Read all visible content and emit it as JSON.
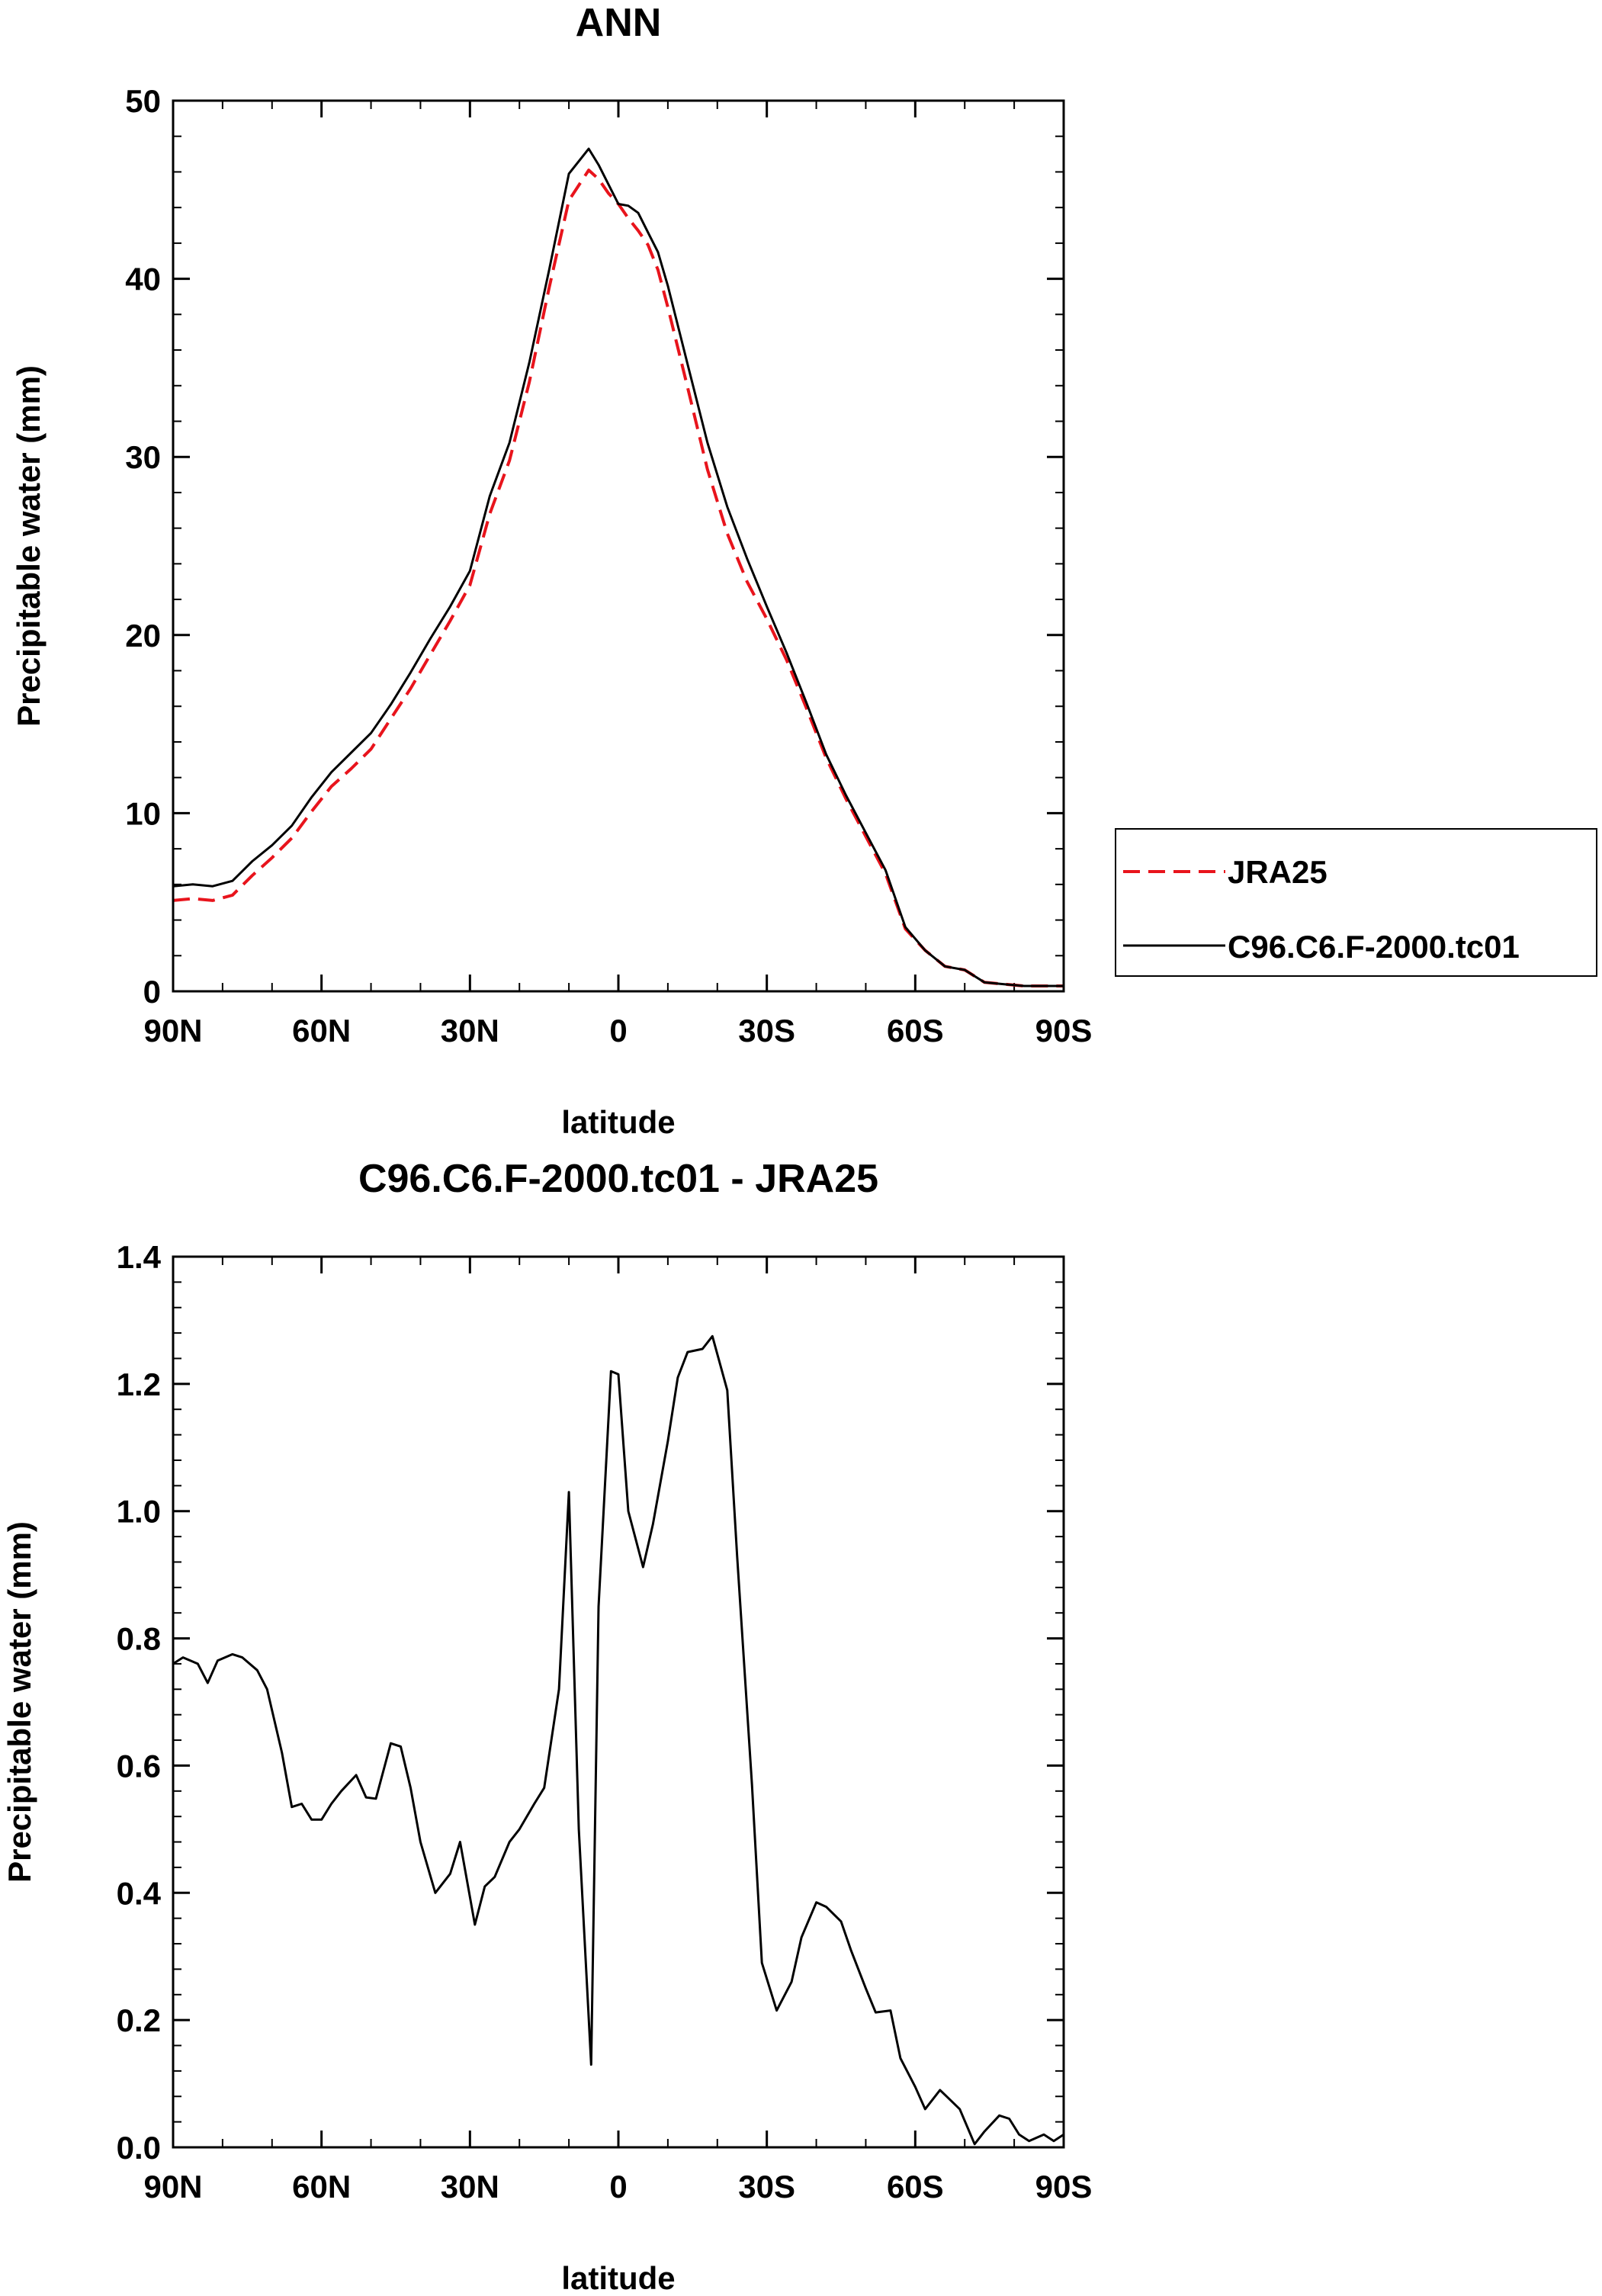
{
  "chart_data": [
    {
      "type": "line",
      "title": "ANN",
      "xlabel": "latitude",
      "ylabel": "Precipitable water (mm)",
      "ylim": [
        0,
        50
      ],
      "yticks": [
        0,
        10,
        20,
        30,
        40,
        50
      ],
      "xlim": [
        90,
        -90
      ],
      "xticks": [
        {
          "value": 90,
          "label": "90N"
        },
        {
          "value": 60,
          "label": "60N"
        },
        {
          "value": 30,
          "label": "30N"
        },
        {
          "value": 0,
          "label": "0"
        },
        {
          "value": -30,
          "label": "30S"
        },
        {
          "value": -60,
          "label": "60S"
        },
        {
          "value": -90,
          "label": "90S"
        }
      ],
      "legend": {
        "position": "right",
        "entries": [
          "JRA25",
          "C96.C6.F-2000.tc01"
        ]
      },
      "series": [
        {
          "name": "JRA25",
          "color": "#e8141c",
          "dash": "dashed",
          "x": [
            90,
            86,
            82,
            78,
            74,
            70,
            66,
            62,
            58,
            54,
            50,
            46,
            42,
            38,
            34,
            30,
            26,
            22,
            18,
            14,
            10,
            6,
            4,
            2,
            0,
            -2,
            -4,
            -6,
            -8,
            -10,
            -14,
            -18,
            -22,
            -26,
            -30,
            -34,
            -38,
            -42,
            -46,
            -50,
            -54,
            -58,
            -62,
            -66,
            -70,
            -74,
            -78,
            -82,
            -86,
            -90
          ],
          "values": [
            5.1,
            5.2,
            5.1,
            5.4,
            6.5,
            7.5,
            8.6,
            10.1,
            11.5,
            12.5,
            13.6,
            15.3,
            17.0,
            18.9,
            20.8,
            22.8,
            26.8,
            29.8,
            34.2,
            39.5,
            44.4,
            46.1,
            45.6,
            44.8,
            44.2,
            43.4,
            42.7,
            41.9,
            40.5,
            38.4,
            33.9,
            29.3,
            25.7,
            23.0,
            20.9,
            18.6,
            15.9,
            13.1,
            10.8,
            8.7,
            6.6,
            3.5,
            2.3,
            1.4,
            1.2,
            0.5,
            0.4,
            0.3,
            0.3,
            0.3
          ]
        },
        {
          "name": "C96.C6.F-2000.tc01",
          "color": "#000000",
          "dash": "solid",
          "x": [
            90,
            86,
            82,
            78,
            74,
            70,
            66,
            62,
            58,
            54,
            50,
            46,
            42,
            38,
            34,
            30,
            26,
            22,
            18,
            14,
            10,
            6,
            4,
            2,
            0,
            -2,
            -4,
            -6,
            -8,
            -10,
            -14,
            -18,
            -22,
            -26,
            -30,
            -34,
            -38,
            -42,
            -46,
            -50,
            -54,
            -58,
            -62,
            -66,
            -70,
            -74,
            -78,
            -82,
            -86,
            -90
          ],
          "values": [
            5.9,
            6.0,
            5.9,
            6.2,
            7.3,
            8.2,
            9.3,
            10.9,
            12.3,
            13.4,
            14.5,
            16.1,
            17.9,
            19.8,
            21.6,
            23.6,
            27.8,
            30.8,
            35.3,
            40.5,
            45.9,
            47.3,
            46.4,
            45.3,
            44.2,
            44.1,
            43.7,
            42.6,
            41.5,
            39.6,
            35.2,
            30.8,
            27.2,
            24.3,
            21.6,
            19.0,
            16.2,
            13.3,
            11.0,
            8.9,
            6.8,
            3.6,
            2.3,
            1.4,
            1.2,
            0.5,
            0.4,
            0.3,
            0.3,
            0.3
          ]
        }
      ]
    },
    {
      "type": "line",
      "title": "C96.C6.F-2000.tc01 - JRA25",
      "xlabel": "latitude",
      "ylabel": "Precipitable water (mm)",
      "ylim": [
        0,
        1.4
      ],
      "yticks": [
        "0.0",
        "0.2",
        "0.4",
        "0.6",
        "0.8",
        "1.0",
        "1.2",
        "1.4"
      ],
      "xlim": [
        90,
        -90
      ],
      "xticks": [
        {
          "value": 90,
          "label": "90N"
        },
        {
          "value": 60,
          "label": "60N"
        },
        {
          "value": 30,
          "label": "30N"
        },
        {
          "value": 0,
          "label": "0"
        },
        {
          "value": -30,
          "label": "30S"
        },
        {
          "value": -60,
          "label": "60S"
        },
        {
          "value": -90,
          "label": "90S"
        }
      ],
      "series": [
        {
          "name": "C96.C6.F-2000.tc01 - JRA25",
          "color": "#000000",
          "dash": "solid",
          "x": [
            90,
            88,
            85,
            83,
            81,
            78,
            76,
            73,
            71,
            68,
            66,
            64,
            62,
            60,
            58,
            56,
            53,
            51,
            49,
            46,
            44,
            42,
            40,
            37,
            34,
            32,
            29,
            27,
            25,
            22,
            20,
            17,
            15,
            12,
            10,
            8,
            5.5,
            4,
            1.5,
            0,
            -2,
            -5,
            -7,
            -10,
            -12,
            -14,
            -17,
            -19,
            -22,
            -24,
            -27,
            -29,
            -32,
            -35,
            -37,
            -40,
            -42,
            -45,
            -47,
            -50,
            -52,
            -55,
            -57,
            -60,
            -62,
            -65,
            -67,
            -69,
            -72,
            -74,
            -77,
            -79,
            -81,
            -83,
            -86,
            -88,
            -90
          ],
          "values": [
            0.76,
            0.77,
            0.76,
            0.73,
            0.765,
            0.775,
            0.77,
            0.75,
            0.72,
            0.62,
            0.535,
            0.54,
            0.515,
            0.515,
            0.54,
            0.56,
            0.585,
            0.55,
            0.548,
            0.635,
            0.63,
            0.565,
            0.48,
            0.4,
            0.43,
            0.48,
            0.35,
            0.41,
            0.425,
            0.48,
            0.5,
            0.54,
            0.565,
            0.72,
            1.03,
            0.5,
            0.13,
            0.85,
            1.22,
            1.215,
            1.0,
            0.912,
            0.98,
            1.11,
            1.21,
            1.25,
            1.255,
            1.275,
            1.19,
            0.93,
            0.57,
            0.29,
            0.215,
            0.26,
            0.33,
            0.385,
            0.378,
            0.355,
            0.31,
            0.25,
            0.212,
            0.215,
            0.14,
            0.095,
            0.06,
            0.09,
            0.075,
            0.06,
            0.005,
            0.025,
            0.05,
            0.045,
            0.02,
            0.01,
            0.02,
            0.01,
            0.02
          ]
        }
      ]
    }
  ]
}
